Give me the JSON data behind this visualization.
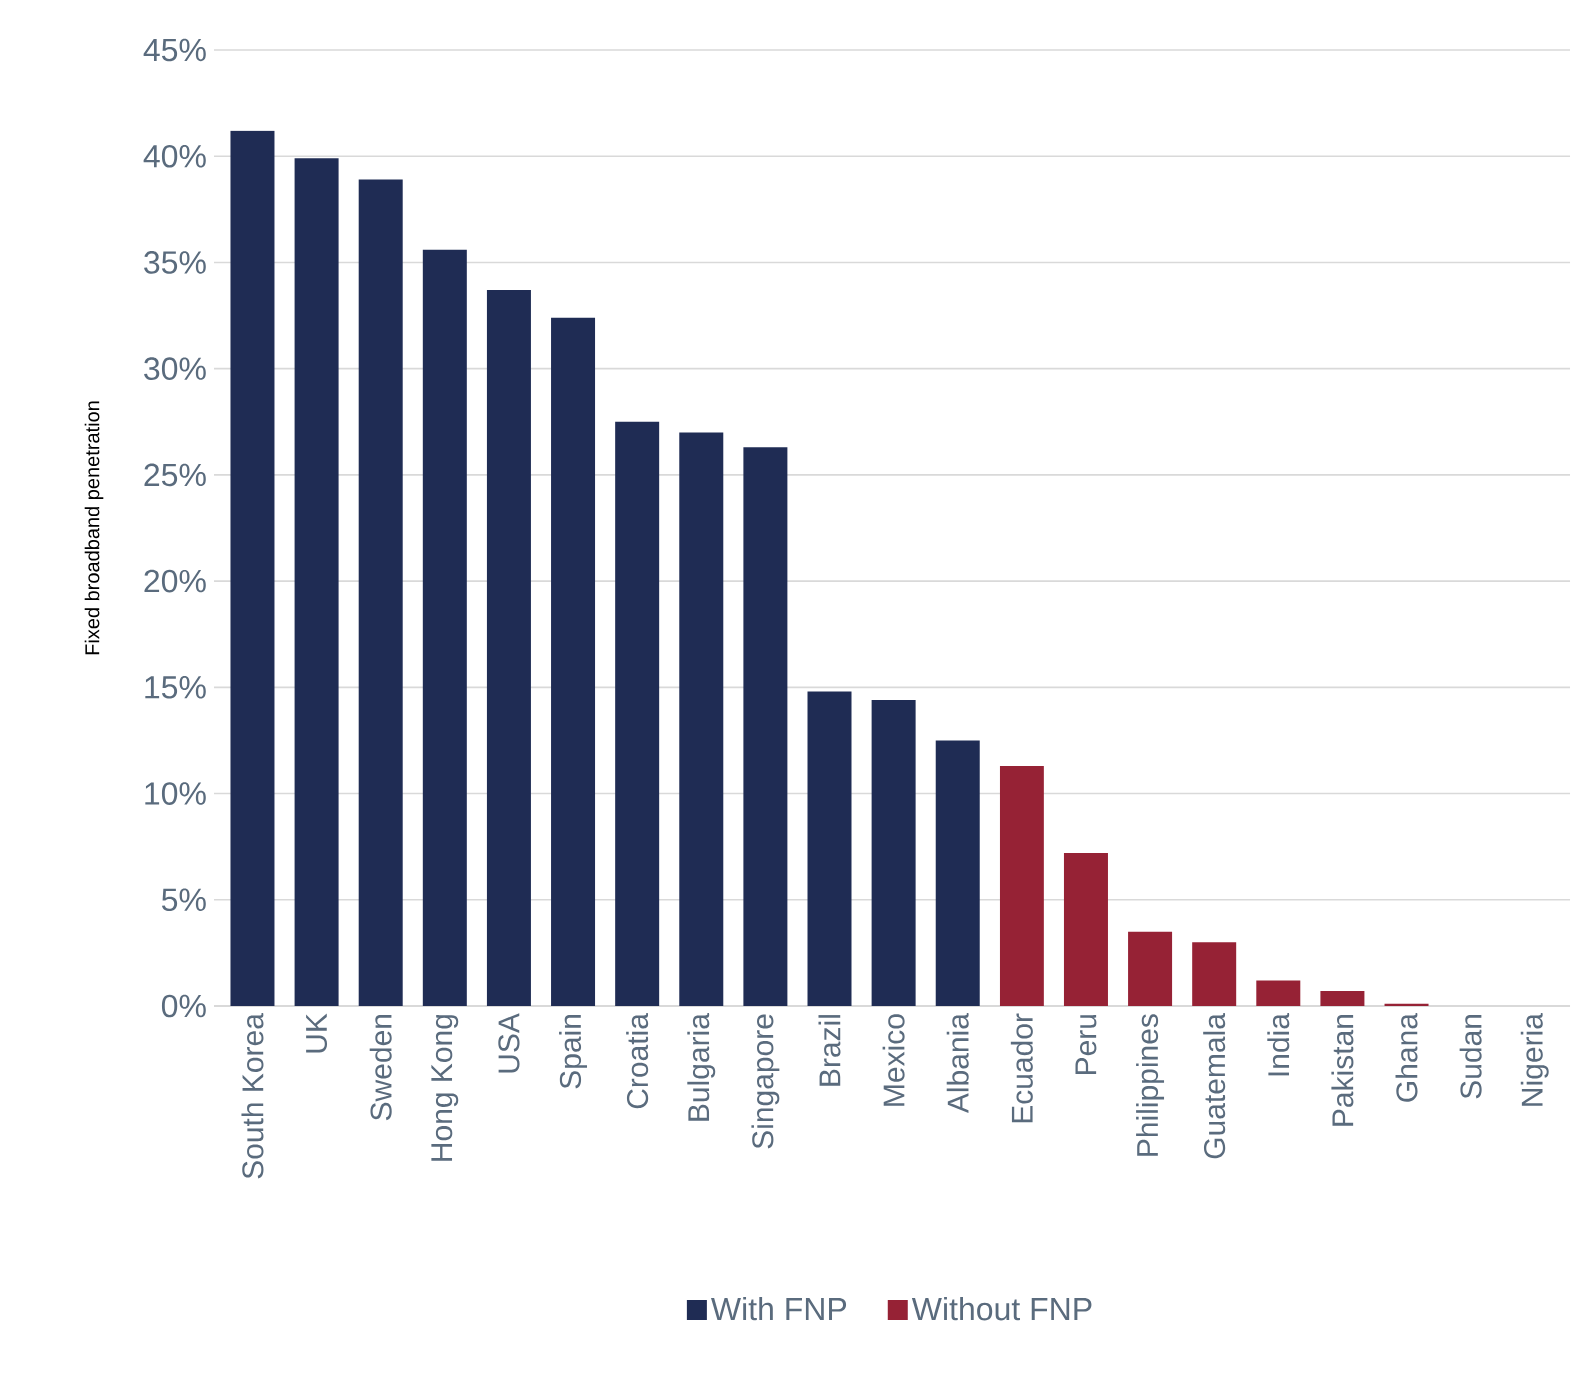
{
  "chart_data": {
    "type": "bar",
    "ylabel": "Fixed broadband penetration",
    "categories": [
      "South Korea",
      "UK",
      "Sweden",
      "Hong Kong",
      "USA",
      "Spain",
      "Croatia",
      "Bulgaria",
      "Singapore",
      "Brazil",
      "Mexico",
      "Albania",
      "Ecuador",
      "Peru",
      "Philippines",
      "Guatemala",
      "India",
      "Pakistan",
      "Ghana",
      "Sudan",
      "Nigeria"
    ],
    "series": [
      {
        "name": "With FNP",
        "color": "#1f2c54",
        "values": [
          41.2,
          39.9,
          38.9,
          35.6,
          33.7,
          32.4,
          27.5,
          27.0,
          26.3,
          14.8,
          14.4,
          12.5,
          null,
          null,
          null,
          null,
          null,
          null,
          null,
          null,
          null
        ]
      },
      {
        "name": "Without FNP",
        "color": "#962235",
        "values": [
          null,
          null,
          null,
          null,
          null,
          null,
          null,
          null,
          null,
          null,
          null,
          null,
          11.3,
          7.2,
          3.5,
          3.0,
          1.2,
          0.7,
          0.1,
          0,
          0
        ]
      }
    ],
    "ylim": [
      0,
      45
    ],
    "yticks": [
      {
        "value": 0,
        "label": "0%"
      },
      {
        "value": 5,
        "label": "5%"
      },
      {
        "value": 10,
        "label": "10%"
      },
      {
        "value": 15,
        "label": "15%"
      },
      {
        "value": 20,
        "label": "20%"
      },
      {
        "value": 25,
        "label": "25%"
      },
      {
        "value": 30,
        "label": "30%"
      },
      {
        "value": 35,
        "label": "35%"
      },
      {
        "value": 40,
        "label": "40%"
      },
      {
        "value": 45,
        "label": "45%"
      }
    ],
    "grid": "y",
    "legend": "bottom"
  }
}
